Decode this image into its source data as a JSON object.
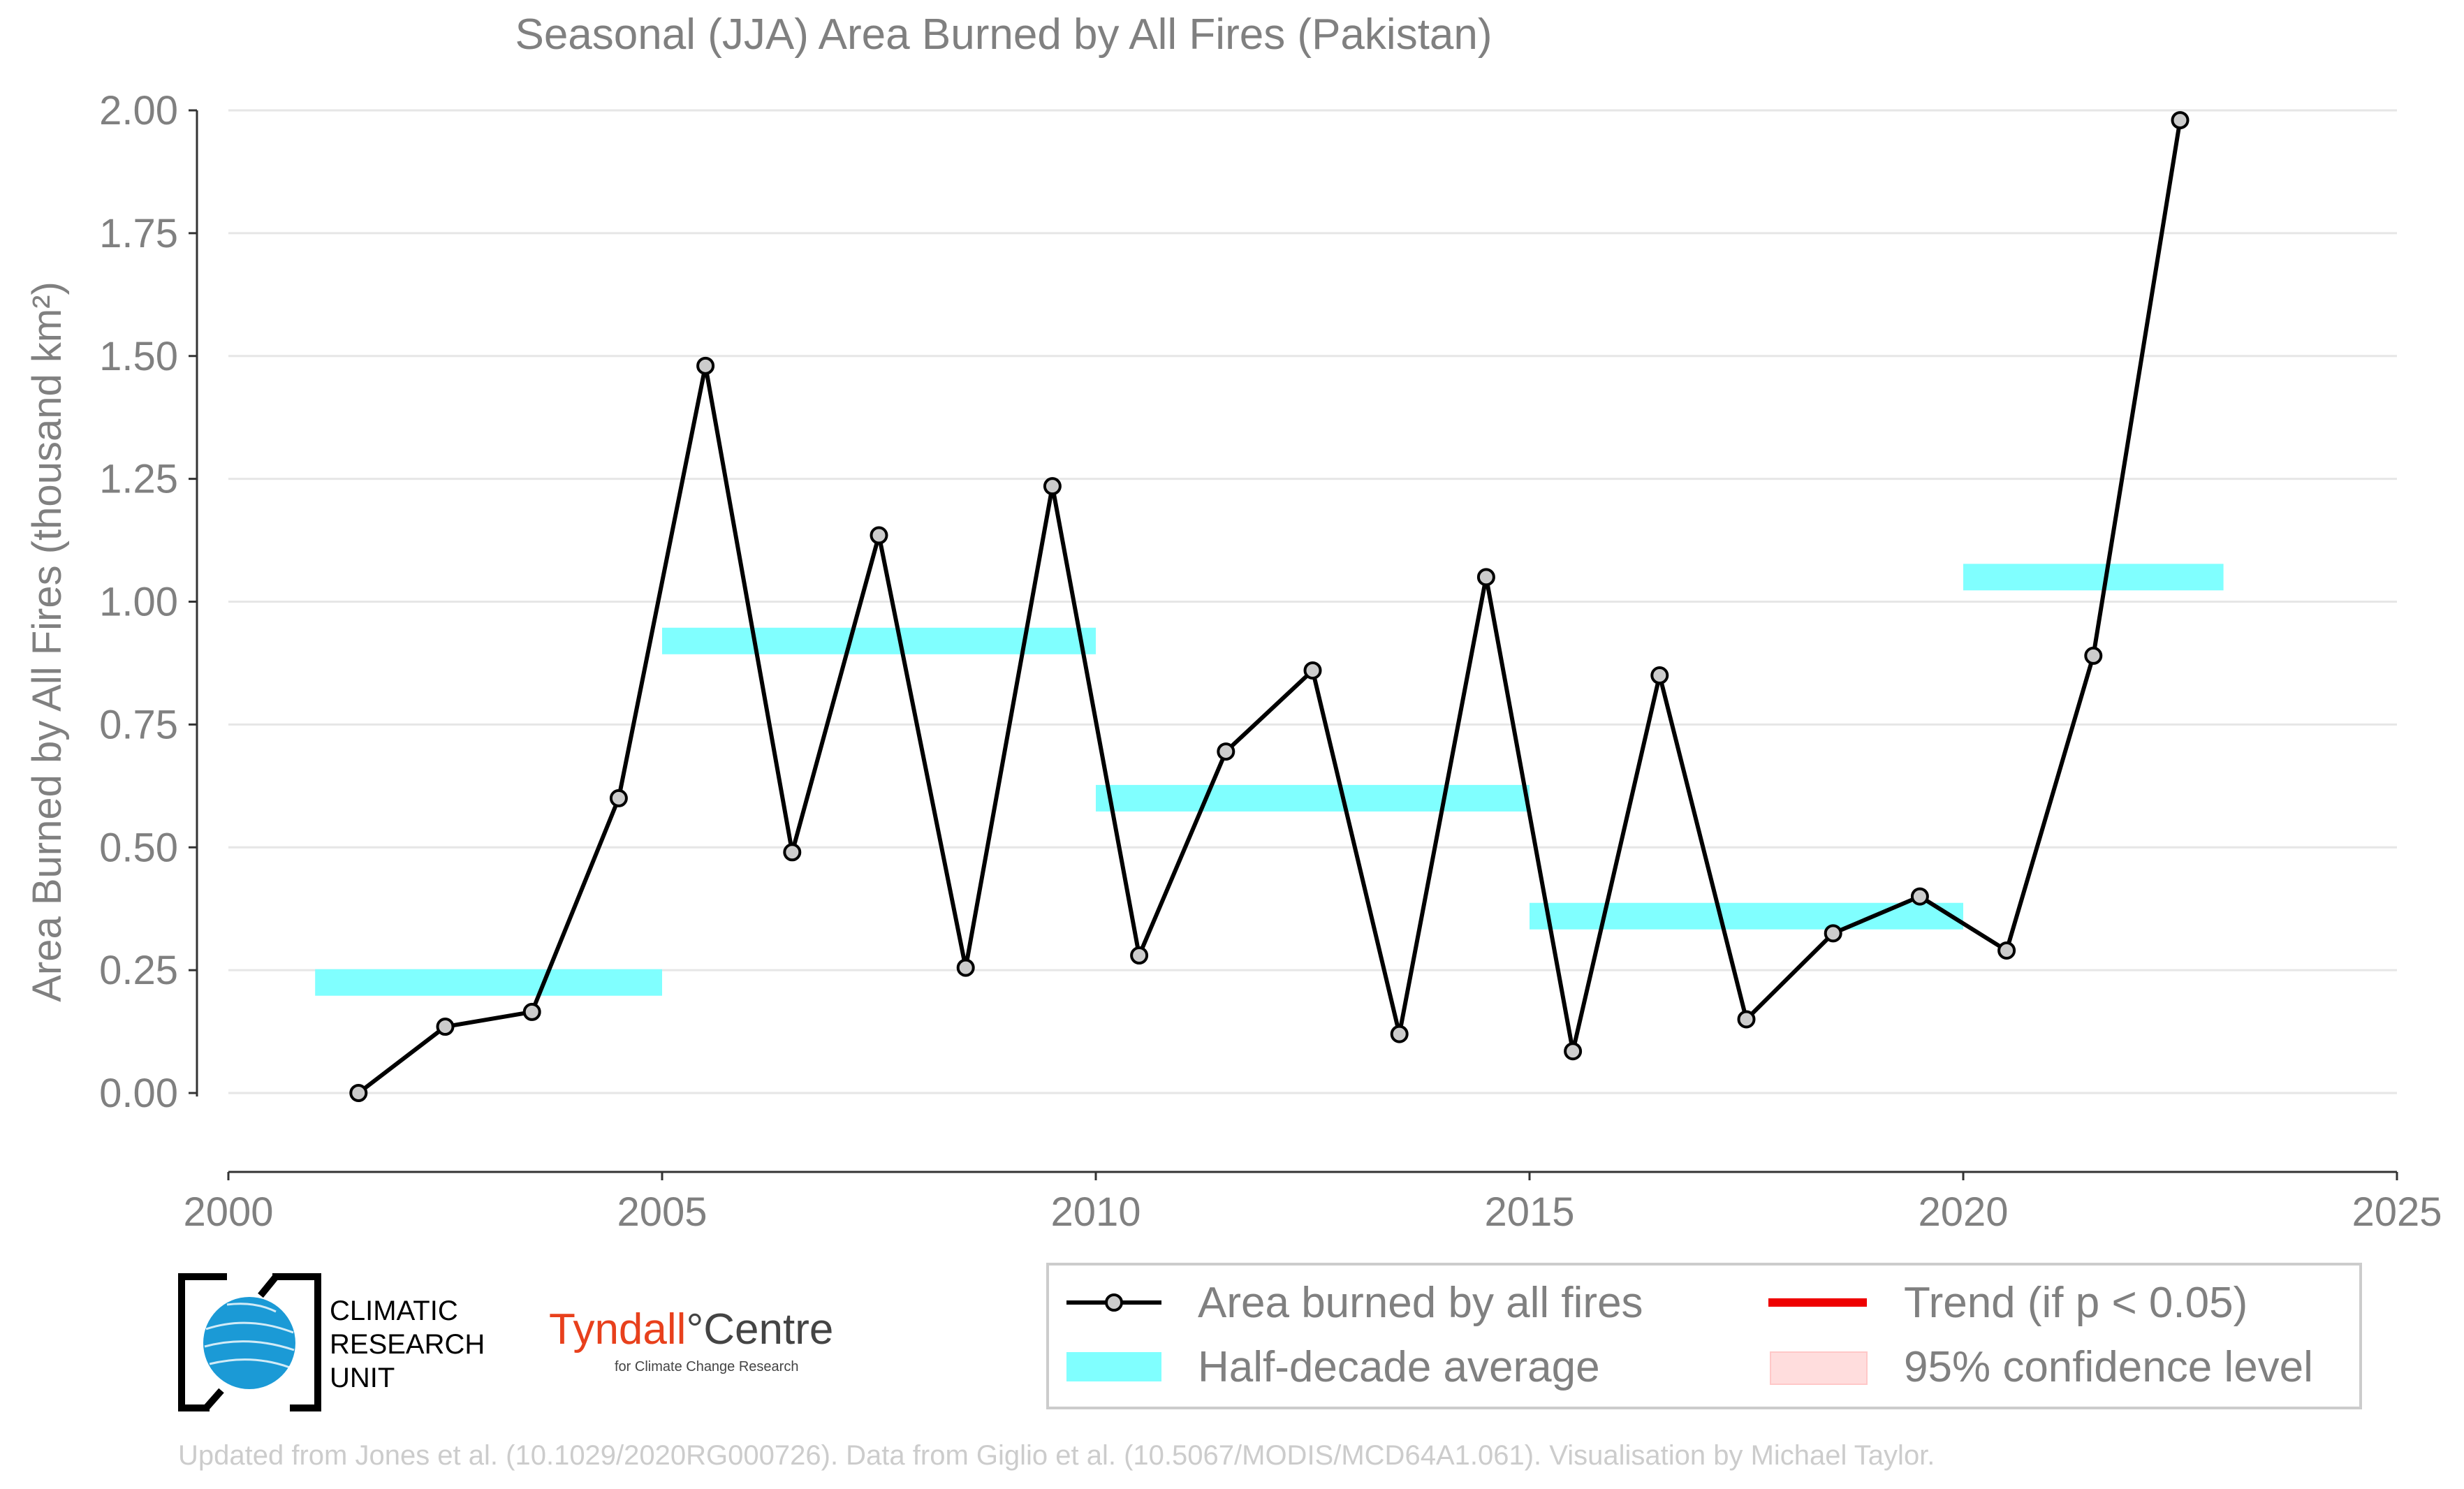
{
  "chart_data": {
    "type": "line",
    "title": "Seasonal (JJA) Area Burned by All Fires (Pakistan)",
    "xlabel": "",
    "ylabel": "Area Burned by All Fires (thousand km²)",
    "xlim": [
      2000,
      2025
    ],
    "ylim": [
      -0.15,
      2.05
    ],
    "x_ticks": [
      "2000",
      "2005",
      "2010",
      "2015",
      "2020",
      "2025"
    ],
    "y_ticks": [
      "0.00",
      "0.25",
      "0.50",
      "0.75",
      "1.00",
      "1.25",
      "1.50",
      "1.75",
      "2.00"
    ],
    "grid": "horizontal",
    "series": [
      {
        "name": "Area burned by all fires",
        "color": "#000000",
        "marker_fill": "#cccccc",
        "x": [
          2001.5,
          2002.5,
          2003.5,
          2004.5,
          2005.5,
          2006.5,
          2007.5,
          2008.5,
          2009.5,
          2010.5,
          2011.5,
          2012.5,
          2013.5,
          2014.5,
          2015.5,
          2016.5,
          2017.5,
          2018.5,
          2019.5,
          2020.5,
          2021.5,
          2022.5
        ],
        "values": [
          0.0,
          0.135,
          0.165,
          0.6,
          1.48,
          0.49,
          1.135,
          0.255,
          1.235,
          0.28,
          0.695,
          0.86,
          0.12,
          1.05,
          0.085,
          0.85,
          0.15,
          0.325,
          0.4,
          0.29,
          0.89,
          1.98
        ]
      }
    ],
    "half_decade_averages": [
      {
        "x_start": 2001,
        "x_end": 2005,
        "value": 0.225
      },
      {
        "x_start": 2005,
        "x_end": 2010,
        "value": 0.92
      },
      {
        "x_start": 2010,
        "x_end": 2015,
        "value": 0.6
      },
      {
        "x_start": 2015,
        "x_end": 2020,
        "value": 0.36
      },
      {
        "x_start": 2020,
        "x_end": 2023,
        "value": 1.05
      }
    ],
    "legend": {
      "placement": "bottom-right",
      "entries": [
        {
          "key": "line",
          "label": "Area burned by all fires",
          "color": "#000000"
        },
        {
          "key": "trend",
          "label": "Trend (if p < 0.05)",
          "color": "#ee0000"
        },
        {
          "key": "avg",
          "label": "Half-decade average",
          "color": "#80ffff"
        },
        {
          "key": "ci",
          "label": "95% confidence level",
          "color": "#ffdddd"
        }
      ]
    },
    "colors": {
      "text": "#808080",
      "grid": "#e6e6e6",
      "average_band": "#80ffff",
      "trend": "#ee0000",
      "confidence": "#ffdddd"
    }
  },
  "logos": {
    "cru": {
      "line1": "CLIMATIC",
      "line2": "RESEARCH",
      "line3": "UNIT"
    },
    "tyndall": {
      "name_part1": "Tyndall",
      "name_part2": "°Centre",
      "subtitle": "for Climate Change Research"
    }
  },
  "credit": "Updated from Jones et al. (10.1029/2020RG000726). Data from Giglio et al. (10.5067/MODIS/MCD64A1.061). Visualisation by Michael Taylor."
}
